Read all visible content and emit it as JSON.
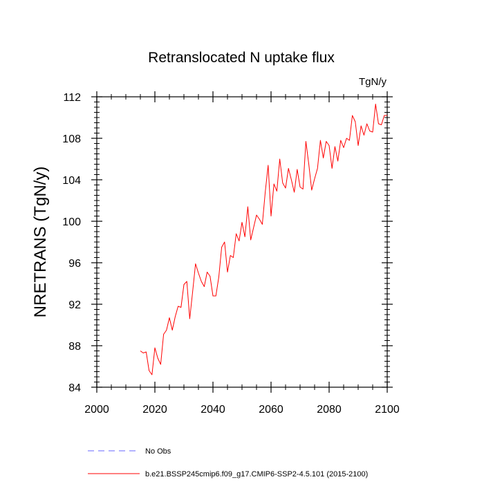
{
  "chart_data": {
    "type": "line",
    "title": "Retranslocated N uptake flux",
    "units": "TgN/y",
    "xlabel": "",
    "ylabel": "NRETRANS  (TgN/y)",
    "xlim": [
      2000,
      2100
    ],
    "ylim": [
      84,
      112
    ],
    "xticks": [
      2000,
      2020,
      2040,
      2060,
      2080,
      2100
    ],
    "yticks": [
      84,
      88,
      92,
      96,
      100,
      104,
      108,
      112
    ],
    "x_minor_step": 5,
    "y_minor_step": 0.5,
    "grid": false,
    "legend_position": "bottom",
    "colors": {
      "model": "#ff0000",
      "obs": "#6666ff",
      "axes": "#000000"
    },
    "series": [
      {
        "name": "No Obs",
        "style": "dashed",
        "values": []
      },
      {
        "name": "b.e21.BSSP245cmip6.f09_g17.CMIP6-SSP2-4.5.101 (2015-2100)",
        "style": "solid",
        "x": [
          2015,
          2016,
          2017,
          2018,
          2019,
          2020,
          2021,
          2022,
          2023,
          2024,
          2025,
          2026,
          2027,
          2028,
          2029,
          2030,
          2031,
          2032,
          2033,
          2034,
          2035,
          2036,
          2037,
          2038,
          2039,
          2040,
          2041,
          2042,
          2043,
          2044,
          2045,
          2046,
          2047,
          2048,
          2049,
          2050,
          2051,
          2052,
          2053,
          2054,
          2055,
          2056,
          2057,
          2058,
          2059,
          2060,
          2061,
          2062,
          2063,
          2064,
          2065,
          2066,
          2067,
          2068,
          2069,
          2070,
          2071,
          2072,
          2073,
          2074,
          2075,
          2076,
          2077,
          2078,
          2079,
          2080,
          2081,
          2082,
          2083,
          2084,
          2085,
          2086,
          2087,
          2088,
          2089,
          2090,
          2091,
          2092,
          2093,
          2094,
          2095,
          2096,
          2097,
          2098,
          2099,
          2100
        ],
        "values": [
          87.5,
          87.3,
          87.4,
          85.6,
          85.2,
          87.8,
          86.8,
          86.2,
          89.1,
          89.5,
          90.7,
          89.5,
          90.8,
          91.8,
          91.7,
          93.9,
          94.2,
          90.6,
          93.2,
          95.9,
          95.0,
          94.2,
          93.7,
          95.1,
          94.7,
          92.8,
          92.8,
          94.6,
          97.5,
          98.0,
          95.1,
          96.7,
          96.5,
          98.8,
          98.1,
          99.9,
          98.5,
          101.4,
          98.2,
          99.4,
          100.6,
          100.2,
          99.7,
          102.8,
          105.4,
          100.5,
          103.6,
          102.9,
          106.0,
          103.7,
          103.2,
          105.1,
          104.0,
          102.8,
          105.0,
          103.3,
          103.1,
          107.7,
          105.5,
          103.0,
          104.1,
          105.1,
          107.8,
          106.1,
          107.7,
          107.3,
          105.1,
          107.2,
          105.8,
          107.8,
          107.1,
          108.0,
          107.8,
          110.2,
          109.6,
          107.3,
          109.2,
          108.3,
          109.4,
          108.7,
          108.6,
          111.3,
          109.4,
          109.3,
          110.2,
          110.2
        ]
      }
    ]
  }
}
